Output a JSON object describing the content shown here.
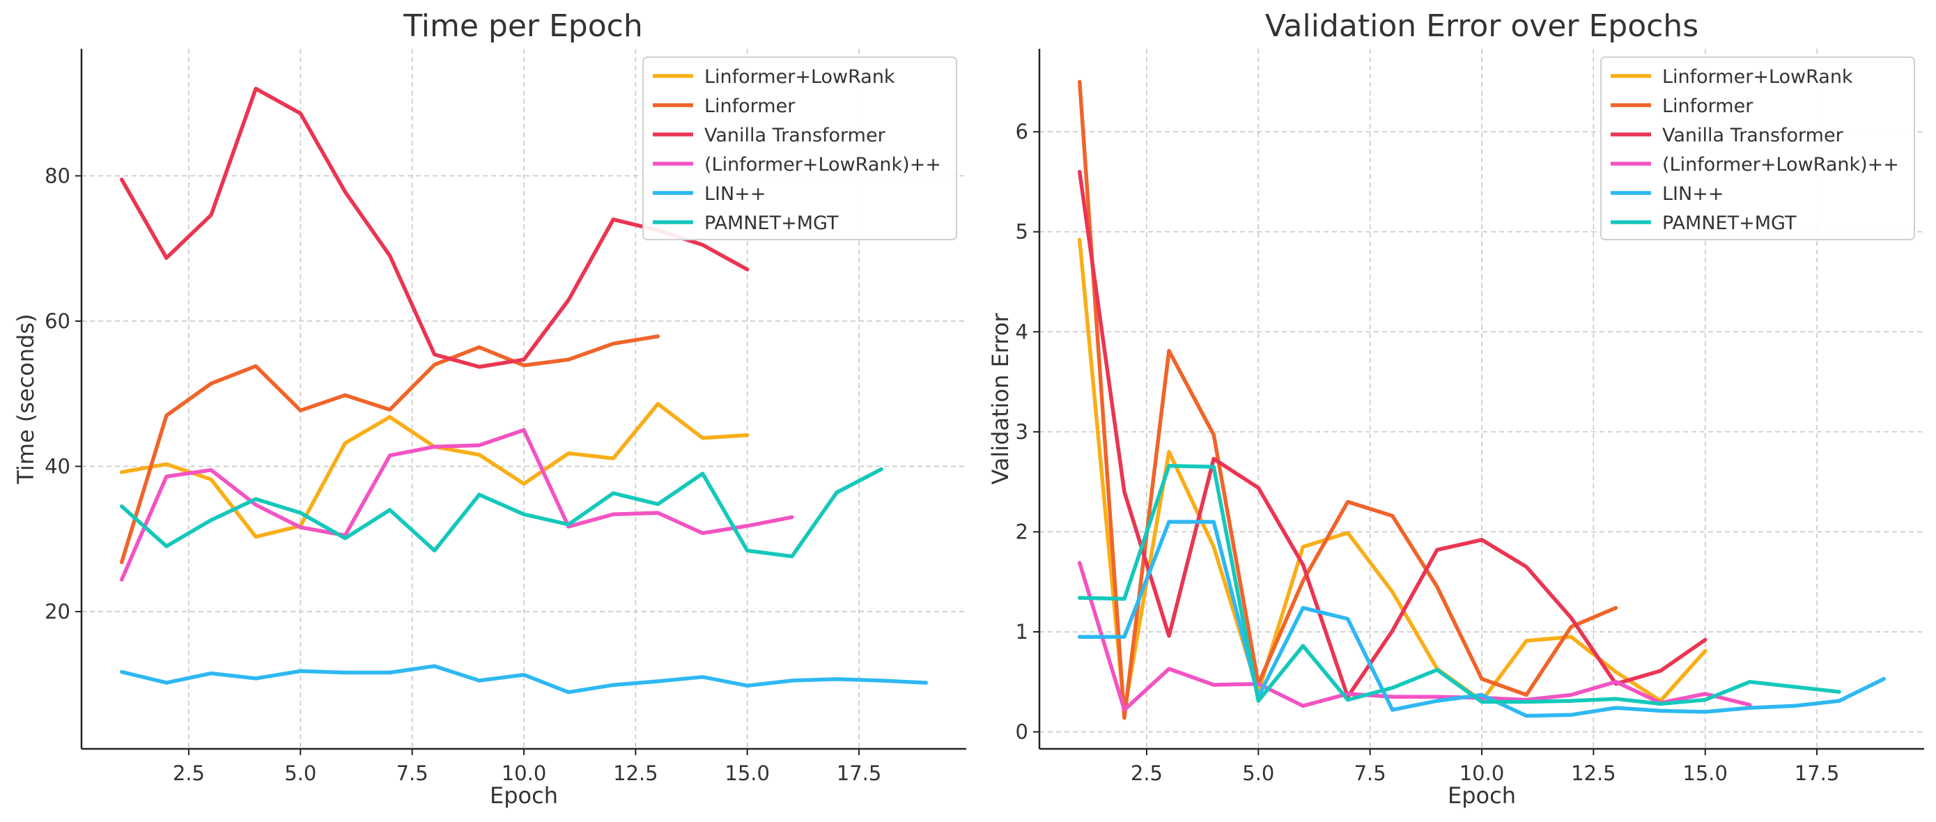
{
  "chart_data": [
    {
      "type": "line",
      "title": "Time per Epoch",
      "xlabel": "Epoch",
      "ylabel": "Time (seconds)",
      "xlim": [
        0.1,
        19.9
      ],
      "ylim": [
        1.1,
        97.5
      ],
      "xticks": [
        2.5,
        5.0,
        7.5,
        10.0,
        12.5,
        15.0,
        17.5
      ],
      "xtick_labels": [
        "2.5",
        "5.0",
        "7.5",
        "10.0",
        "12.5",
        "15.0",
        "17.5"
      ],
      "yticks": [
        20,
        40,
        60,
        80
      ],
      "ytick_labels": [
        "20",
        "40",
        "60",
        "80"
      ],
      "grid": true,
      "legend_position": "top-right",
      "series": [
        {
          "name": "Linformer+LowRank",
          "color": "#F9AE18",
          "x": [
            1,
            2,
            3,
            4,
            5,
            6,
            7,
            8,
            9,
            10,
            11,
            12,
            13,
            14,
            15
          ],
          "y": [
            39.2,
            40.3,
            38.2,
            30.3,
            31.8,
            43.2,
            46.8,
            42.7,
            41.6,
            37.6,
            41.8,
            41.1,
            48.6,
            43.9,
            44.3
          ]
        },
        {
          "name": "Linformer",
          "color": "#F0642A",
          "x": [
            1,
            2,
            3,
            4,
            5,
            6,
            7,
            8,
            9,
            10,
            11,
            12,
            13
          ],
          "y": [
            26.8,
            47.0,
            51.4,
            53.8,
            47.7,
            49.8,
            47.8,
            54.0,
            56.4,
            53.9,
            54.7,
            56.9,
            57.9
          ]
        },
        {
          "name": "Vanilla Transformer",
          "color": "#EA3552",
          "x": [
            1,
            2,
            3,
            4,
            5,
            6,
            7,
            8,
            9,
            10,
            11,
            12,
            13,
            14,
            15
          ],
          "y": [
            79.5,
            68.7,
            74.6,
            92.0,
            88.6,
            77.8,
            69.0,
            55.4,
            53.7,
            54.7,
            62.9,
            74.0,
            72.5,
            70.5,
            67.1
          ]
        },
        {
          "name": "(Linformer+LowRank)++",
          "color": "#F353C3",
          "x": [
            1,
            2,
            3,
            4,
            5,
            6,
            7,
            8,
            9,
            10,
            11,
            12,
            13,
            14,
            15,
            16
          ],
          "y": [
            24.4,
            38.6,
            39.5,
            34.7,
            31.6,
            30.5,
            41.5,
            42.7,
            42.9,
            45.0,
            31.7,
            33.4,
            33.6,
            30.8,
            31.8,
            33.0
          ]
        },
        {
          "name": "LIN++",
          "color": "#2EB8F2",
          "x": [
            1,
            2,
            3,
            4,
            5,
            6,
            7,
            8,
            9,
            10,
            11,
            12,
            13,
            14,
            15,
            16,
            17,
            18,
            19
          ],
          "y": [
            11.7,
            10.2,
            11.5,
            10.8,
            11.8,
            11.6,
            11.6,
            12.5,
            10.5,
            11.3,
            8.9,
            9.9,
            10.4,
            11.0,
            9.8,
            10.5,
            10.7,
            10.5,
            10.2
          ]
        },
        {
          "name": "PAMNET+MGT",
          "color": "#14C8BB",
          "x": [
            1,
            2,
            3,
            4,
            5,
            6,
            7,
            8,
            9,
            10,
            11,
            12,
            13,
            14,
            15,
            16,
            17,
            18
          ],
          "y": [
            34.5,
            29.0,
            32.6,
            35.5,
            33.6,
            30.1,
            34.0,
            28.4,
            36.1,
            33.4,
            32.0,
            36.3,
            34.8,
            39.0,
            28.4,
            27.6,
            36.4,
            39.6
          ]
        }
      ]
    },
    {
      "type": "line",
      "title": "Validation Error over Epochs",
      "xlabel": "Epoch",
      "ylabel": "Validation Error",
      "xlim": [
        0.1,
        19.9
      ],
      "ylim": [
        -0.17,
        6.83
      ],
      "xticks": [
        2.5,
        5.0,
        7.5,
        10.0,
        12.5,
        15.0,
        17.5
      ],
      "xtick_labels": [
        "2.5",
        "5.0",
        "7.5",
        "10.0",
        "12.5",
        "15.0",
        "17.5"
      ],
      "yticks": [
        0,
        1,
        2,
        3,
        4,
        5,
        6
      ],
      "ytick_labels": [
        "0",
        "1",
        "2",
        "3",
        "4",
        "5",
        "6"
      ],
      "grid": true,
      "legend_position": "top-right",
      "series": [
        {
          "name": "Linformer+LowRank",
          "color": "#F9AE18",
          "x": [
            1,
            2,
            3,
            4,
            5,
            6,
            7,
            8,
            9,
            10,
            11,
            12,
            13,
            14,
            15
          ],
          "y": [
            4.92,
            0.2,
            2.8,
            1.85,
            0.4,
            1.85,
            1.99,
            1.4,
            0.63,
            0.31,
            0.91,
            0.95,
            0.6,
            0.31,
            0.81
          ]
        },
        {
          "name": "Linformer",
          "color": "#F0642A",
          "x": [
            1,
            2,
            3,
            4,
            5,
            6,
            7,
            8,
            9,
            10,
            11,
            12,
            13
          ],
          "y": [
            6.5,
            0.14,
            3.81,
            2.97,
            0.48,
            1.51,
            2.3,
            2.16,
            1.45,
            0.53,
            0.37,
            1.05,
            1.24
          ]
        },
        {
          "name": "Vanilla Transformer",
          "color": "#EA3552",
          "x": [
            1,
            2,
            3,
            4,
            5,
            6,
            7,
            8,
            9,
            10,
            11,
            12,
            13,
            14,
            15
          ],
          "y": [
            5.6,
            2.4,
            0.96,
            2.73,
            2.44,
            1.67,
            0.35,
            1.01,
            1.82,
            1.92,
            1.65,
            1.14,
            0.48,
            0.61,
            0.92
          ]
        },
        {
          "name": "(Linformer+LowRank)++",
          "color": "#F353C3",
          "x": [
            1,
            2,
            3,
            4,
            5,
            6,
            7,
            8,
            9,
            10,
            11,
            12,
            13,
            14,
            15,
            16
          ],
          "y": [
            1.69,
            0.22,
            0.63,
            0.47,
            0.48,
            0.26,
            0.38,
            0.35,
            0.35,
            0.34,
            0.32,
            0.37,
            0.5,
            0.29,
            0.38,
            0.27
          ]
        },
        {
          "name": "LIN++",
          "color": "#2EB8F2",
          "x": [
            1,
            2,
            3,
            4,
            5,
            6,
            7,
            8,
            9,
            10,
            11,
            12,
            13,
            14,
            15,
            16,
            17,
            18,
            19
          ],
          "y": [
            0.95,
            0.95,
            2.1,
            2.1,
            0.35,
            1.24,
            1.13,
            0.22,
            0.31,
            0.37,
            0.16,
            0.17,
            0.24,
            0.21,
            0.2,
            0.24,
            0.26,
            0.31,
            0.53
          ]
        },
        {
          "name": "PAMNET+MGT",
          "color": "#14C8BB",
          "x": [
            1,
            2,
            3,
            4,
            5,
            6,
            7,
            8,
            9,
            10,
            11,
            12,
            13,
            14,
            15,
            16,
            17,
            18
          ],
          "y": [
            1.34,
            1.33,
            2.66,
            2.65,
            0.31,
            0.86,
            0.32,
            0.44,
            0.62,
            0.3,
            0.3,
            0.31,
            0.33,
            0.28,
            0.32,
            0.5,
            0.45,
            0.4
          ]
        }
      ]
    }
  ]
}
